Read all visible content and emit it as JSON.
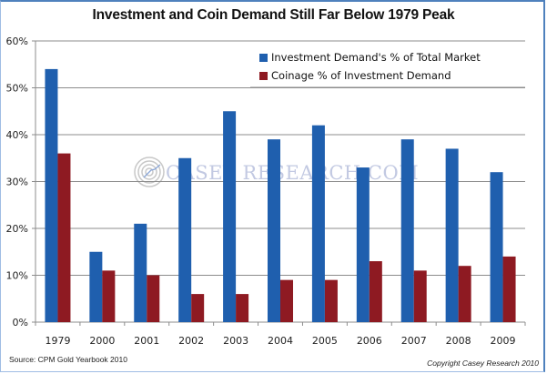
{
  "chart_data": {
    "type": "bar",
    "title": "Investment and Coin Demand Still Far Below 1979 Peak",
    "xlabel": "",
    "ylabel": "",
    "categories": [
      "1979",
      "2000",
      "2001",
      "2002",
      "2003",
      "2004",
      "2005",
      "2006",
      "2007",
      "2008",
      "2009"
    ],
    "series": [
      {
        "name": "Investment Demand's % of Total Market",
        "color": "#1f5fae",
        "values": [
          54,
          15,
          21,
          35,
          45,
          39,
          42,
          33,
          39,
          37,
          32
        ]
      },
      {
        "name": "Coinage % of Investment Demand",
        "color": "#8e1a22",
        "values": [
          36,
          11,
          10,
          6,
          6,
          9,
          9,
          13,
          11,
          12,
          14
        ]
      }
    ],
    "ylim": [
      0,
      60
    ],
    "yticks": [
      0,
      10,
      20,
      30,
      40,
      50,
      60
    ],
    "ytick_labels": [
      "0%",
      "10%",
      "20%",
      "30%",
      "40%",
      "50%",
      "60%"
    ],
    "grid": true,
    "legend_position": "top-right"
  },
  "watermark": "CASEY RESEARCH.COM",
  "source": "Source: CPM Gold Yearbook 2010",
  "copyright": "Copyright  Casey Research  2010"
}
